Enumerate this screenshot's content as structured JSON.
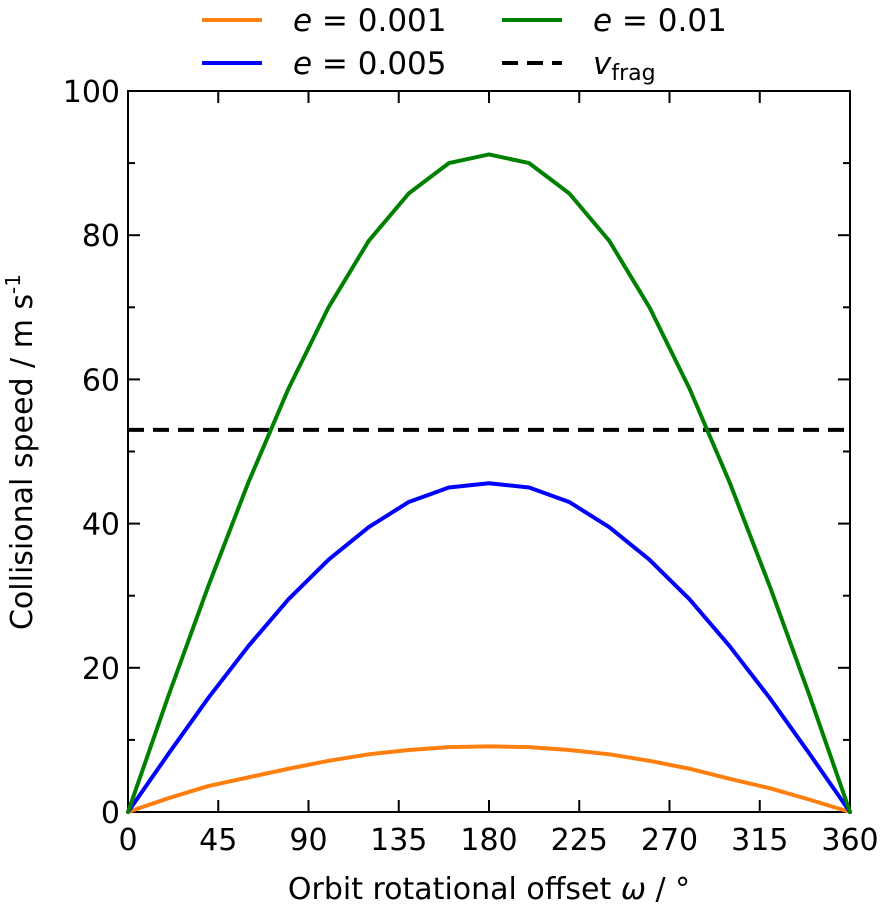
{
  "chart_data": {
    "type": "line",
    "title": "",
    "xlabel": {
      "text": "Orbit rotational offset ",
      "symbol": "ω",
      "unit": " / °"
    },
    "ylabel": {
      "text": "Collisional speed / m s",
      "superscript": "-1"
    },
    "xlim": [
      0,
      360
    ],
    "ylim": [
      0,
      100
    ],
    "xticks": [
      0,
      45,
      90,
      135,
      180,
      225,
      270,
      315,
      360
    ],
    "yticks": [
      0,
      20,
      40,
      60,
      80,
      100
    ],
    "x": [
      0,
      20,
      40,
      60,
      80,
      100,
      120,
      140,
      160,
      180,
      200,
      220,
      240,
      260,
      280,
      300,
      320,
      340,
      360
    ],
    "series": [
      {
        "name": "e = 0.001",
        "symbol": "e",
        "value_text": " = 0.001",
        "color": "#ff7f0e",
        "values": [
          0,
          1.9,
          3.6,
          4.8,
          6.0,
          7.1,
          8.0,
          8.6,
          9.0,
          9.1,
          9.0,
          8.6,
          8.0,
          7.1,
          6.0,
          4.6,
          3.3,
          1.7,
          0
        ]
      },
      {
        "name": "e = 0.005",
        "symbol": "e",
        "value_text": " = 0.005",
        "color": "#0000ff",
        "values": [
          0,
          8.0,
          15.8,
          23.0,
          29.5,
          35.0,
          39.5,
          43.0,
          45.0,
          45.6,
          45.0,
          43.0,
          39.5,
          35.0,
          29.5,
          23.0,
          15.8,
          8.0,
          0
        ]
      },
      {
        "name": "e = 0.01",
        "symbol": "e",
        "value_text": " = 0.01",
        "color": "#008000",
        "values": [
          0,
          16.0,
          31.3,
          45.7,
          58.7,
          70.0,
          79.2,
          85.8,
          90.0,
          91.2,
          90.0,
          85.8,
          79.2,
          70.0,
          58.7,
          45.7,
          31.3,
          16.0,
          0
        ]
      }
    ],
    "reference_line": {
      "name": "v_frag",
      "symbol": "v",
      "subscript": "frag",
      "y": 53,
      "color": "#000000",
      "style": "dashed"
    },
    "legend": {
      "placement": "top-outside",
      "columns": 2
    },
    "grid": false
  }
}
